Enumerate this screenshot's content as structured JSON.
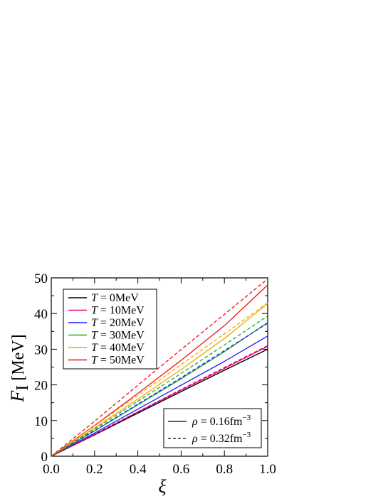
{
  "chart_data": {
    "type": "line",
    "xlabel": "ξ",
    "ylabel_symbol": "F",
    "ylabel_subscript": "I",
    "ylabel_unit": "[MeV]",
    "xlim": [
      0.0,
      1.0
    ],
    "ylim": [
      0,
      50
    ],
    "x_ticks": [
      "0.0",
      "0.2",
      "0.4",
      "0.6",
      "0.8",
      "1.0"
    ],
    "y_ticks": [
      "0",
      "10",
      "20",
      "30",
      "40",
      "50"
    ],
    "grid": false,
    "legend_placement": "top-left",
    "x": [
      0.0,
      0.2,
      0.4,
      0.6,
      0.8,
      1.0
    ],
    "series": [
      {
        "name": "T = 0MeV",
        "T": "0MeV",
        "rho": "0.16",
        "style": "solid",
        "color": "#000000",
        "values": [
          0,
          6.0,
          12.1,
          18.1,
          24.1,
          30.0
        ]
      },
      {
        "name": "T = 10MeV",
        "T": "10MeV",
        "rho": "0.16",
        "style": "solid",
        "color": "#e6007e",
        "values": [
          0,
          6.1,
          12.4,
          18.5,
          24.6,
          30.8
        ]
      },
      {
        "name": "T = 20MeV",
        "T": "20MeV",
        "rho": "0.16",
        "style": "solid",
        "color": "#1a1aff",
        "values": [
          0,
          6.5,
          13.2,
          19.9,
          26.6,
          33.7
        ]
      },
      {
        "name": "T = 30MeV",
        "T": "30MeV",
        "rho": "0.16",
        "style": "solid",
        "color": "#22aa22",
        "values": [
          0,
          7.1,
          14.4,
          21.7,
          29.3,
          37.5
        ]
      },
      {
        "name": "T = 40MeV",
        "T": "40MeV",
        "rho": "0.16",
        "style": "solid",
        "color": "#f0a800",
        "values": [
          0,
          7.9,
          16.0,
          24.3,
          33.0,
          42.8
        ]
      },
      {
        "name": "T = 50MeV",
        "T": "50MeV",
        "rho": "0.16",
        "style": "solid",
        "color": "#ee1111",
        "values": [
          0,
          8.6,
          17.6,
          26.9,
          36.6,
          48.0
        ]
      },
      {
        "name": "T = 0MeV",
        "T": "0MeV",
        "rho": "0.32",
        "style": "dashed",
        "color": "#000000",
        "values": [
          0,
          6.0,
          12.1,
          18.1,
          24.1,
          30.0
        ]
      },
      {
        "name": "T = 10MeV",
        "T": "10MeV",
        "rho": "0.32",
        "style": "dashed",
        "color": "#e6007e",
        "values": [
          0,
          6.2,
          12.5,
          18.7,
          24.9,
          31.0
        ]
      },
      {
        "name": "T = 20MeV",
        "T": "20MeV",
        "rho": "0.32",
        "style": "dashed",
        "color": "#1a1aff",
        "values": [
          0,
          7.2,
          14.6,
          22.0,
          29.6,
          37.3
        ]
      },
      {
        "name": "T = 30MeV",
        "T": "30MeV",
        "rho": "0.32",
        "style": "dashed",
        "color": "#22aa22",
        "values": [
          0,
          7.6,
          15.4,
          23.2,
          31.2,
          39.3
        ]
      },
      {
        "name": "T = 40MeV",
        "T": "40MeV",
        "rho": "0.32",
        "style": "dashed",
        "color": "#f0a800",
        "values": [
          0,
          8.5,
          17.1,
          25.7,
          34.3,
          43.0
        ]
      },
      {
        "name": "T = 50MeV",
        "T": "50MeV",
        "rho": "0.32",
        "style": "dashed",
        "color": "#ee1111",
        "values": [
          0,
          9.8,
          19.9,
          29.9,
          39.8,
          49.7
        ]
      }
    ],
    "legend_T": [
      {
        "prefix": "T",
        "text": " = 0MeV",
        "color": "#000000"
      },
      {
        "prefix": "T",
        "text": " = 10MeV",
        "color": "#e6007e"
      },
      {
        "prefix": "T",
        "text": " = 20MeV",
        "color": "#1a1aff"
      },
      {
        "prefix": "T",
        "text": " = 30MeV",
        "color": "#22aa22"
      },
      {
        "prefix": "T",
        "text": " = 40MeV",
        "color": "#f0a800"
      },
      {
        "prefix": "T",
        "text": " = 50MeV",
        "color": "#ee1111"
      }
    ],
    "legend_rho": [
      {
        "symbol": "ρ",
        "text": " = 0.16fm",
        "sup": "−3",
        "style": "solid"
      },
      {
        "symbol": "ρ",
        "text": " = 0.32fm",
        "sup": "−3",
        "style": "dashed"
      }
    ]
  }
}
